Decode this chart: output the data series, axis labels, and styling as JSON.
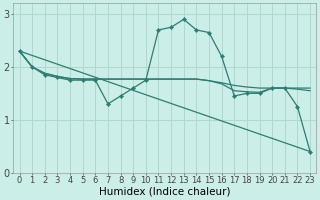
{
  "xlabel": "Humidex (Indice chaleur)",
  "bg_color": "#cceee8",
  "line_color": "#2d7d72",
  "grid_color": "#b0d8d0",
  "xlim": [
    -0.5,
    23.5
  ],
  "ylim": [
    0,
    3.2
  ],
  "line_main": {
    "x": [
      0,
      1,
      2,
      3,
      4,
      5,
      6,
      7,
      8,
      9,
      10,
      11,
      12,
      13,
      14,
      15,
      16,
      17,
      18,
      19,
      20,
      21,
      22,
      23
    ],
    "y": [
      2.3,
      2.0,
      1.85,
      1.8,
      1.75,
      1.75,
      1.75,
      1.3,
      1.45,
      1.6,
      1.75,
      2.7,
      2.75,
      2.9,
      2.7,
      2.65,
      2.2,
      1.45,
      1.5,
      1.5,
      1.6,
      1.6,
      1.25,
      0.4
    ]
  },
  "line_straight": {
    "x": [
      0,
      23
    ],
    "y": [
      2.3,
      0.4
    ]
  },
  "line_trend1": {
    "x": [
      0,
      1,
      2,
      3,
      4,
      5,
      6,
      7,
      8,
      9,
      10,
      11,
      12,
      13,
      14,
      15,
      16,
      17,
      18,
      19,
      20,
      21,
      22,
      23
    ],
    "y": [
      2.3,
      2.0,
      1.88,
      1.82,
      1.78,
      1.77,
      1.77,
      1.77,
      1.77,
      1.77,
      1.77,
      1.77,
      1.77,
      1.77,
      1.77,
      1.74,
      1.7,
      1.65,
      1.62,
      1.6,
      1.6,
      1.6,
      1.58,
      1.55
    ]
  },
  "line_trend2": {
    "x": [
      0,
      1,
      2,
      3,
      4,
      5,
      6,
      7,
      8,
      9,
      10,
      11,
      12,
      13,
      14,
      15,
      16,
      17,
      18,
      19,
      20,
      21,
      22,
      23
    ],
    "y": [
      2.3,
      2.0,
      1.88,
      1.82,
      1.78,
      1.77,
      1.77,
      1.77,
      1.77,
      1.77,
      1.77,
      1.77,
      1.77,
      1.77,
      1.77,
      1.74,
      1.68,
      1.55,
      1.53,
      1.52,
      1.6,
      1.6,
      1.6,
      1.6
    ]
  },
  "xticks": [
    0,
    1,
    2,
    3,
    4,
    5,
    6,
    7,
    8,
    9,
    10,
    11,
    12,
    13,
    14,
    15,
    16,
    17,
    18,
    19,
    20,
    21,
    22,
    23
  ],
  "yticks": [
    0,
    1,
    2,
    3
  ],
  "fontsize_tick": 6.0,
  "fontsize_label": 7.5
}
